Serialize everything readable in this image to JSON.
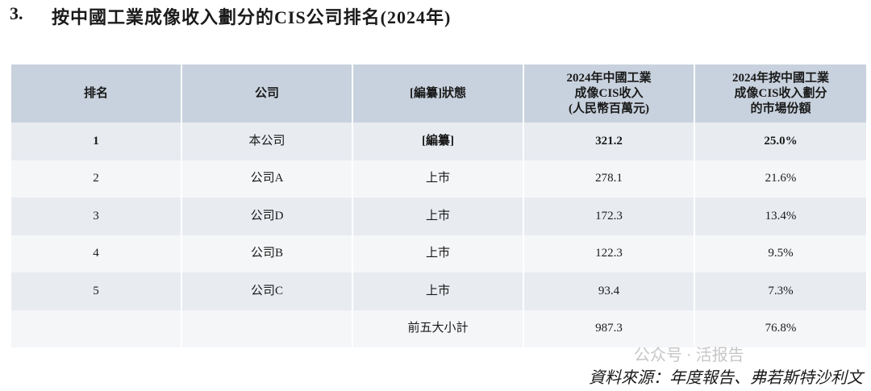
{
  "heading": {
    "number": "3.",
    "title": "按中國工業成像收入劃分的CIS公司排名(2024年)"
  },
  "table": {
    "header": [
      [
        "排名"
      ],
      [
        "公司"
      ],
      [
        "[編纂]狀態"
      ],
      [
        "2024年中國工業",
        "成像CIS收入",
        "(人民幣百萬元)"
      ],
      [
        "2024年按中國工業",
        "成像CIS收入劃分",
        "的市場份額"
      ]
    ],
    "rows": [
      [
        "1",
        "本公司",
        "[編纂]",
        "321.2",
        "25.0%"
      ],
      [
        "2",
        "公司A",
        "上市",
        "278.1",
        "21.6%"
      ],
      [
        "3",
        "公司D",
        "上市",
        "172.3",
        "13.4%"
      ],
      [
        "4",
        "公司B",
        "上市",
        "122.3",
        "9.5%"
      ],
      [
        "5",
        "公司C",
        "上市",
        "93.4",
        "7.3%"
      ],
      [
        null,
        null,
        "前五大小計",
        "987.3",
        "76.8%"
      ]
    ]
  },
  "source": "資料來源：年度報告、弗若斯特沙利文",
  "watermark": "公众号 · 活报告"
}
